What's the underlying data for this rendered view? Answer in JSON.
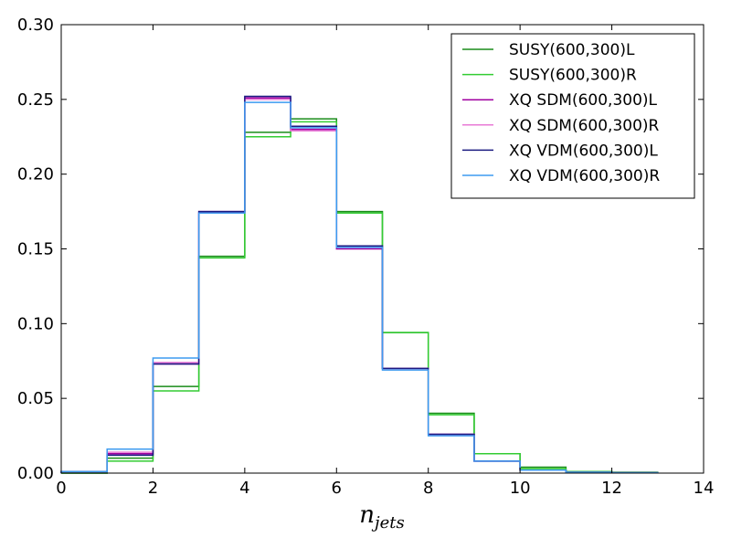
{
  "chart_data": {
    "type": "histogram-step",
    "xlabel_base": "n",
    "xlabel_sub": "jets",
    "ylabel": "",
    "xlim": [
      0,
      14
    ],
    "ylim": [
      0,
      0.3
    ],
    "xticks": [
      "0",
      "2",
      "4",
      "6",
      "8",
      "10",
      "12",
      "14"
    ],
    "yticks": [
      "0.00",
      "0.05",
      "0.10",
      "0.15",
      "0.20",
      "0.25",
      "0.30"
    ],
    "bin_edges": [
      0,
      1,
      2,
      3,
      4,
      5,
      6,
      7,
      8,
      9,
      10,
      11,
      12,
      13
    ],
    "legend_position": "top-right",
    "series": [
      {
        "name": "SUSY(600,300)L",
        "color": "#1a8c1a",
        "values": [
          0.0,
          0.01,
          0.058,
          0.145,
          0.228,
          0.237,
          0.175,
          0.094,
          0.04,
          0.013,
          0.004,
          0.001,
          0.0005
        ]
      },
      {
        "name": "SUSY(600,300)R",
        "color": "#33cc33",
        "values": [
          0.0,
          0.008,
          0.055,
          0.144,
          0.225,
          0.235,
          0.174,
          0.094,
          0.039,
          0.013,
          0.003,
          0.001,
          0.0005
        ]
      },
      {
        "name": "XQ SDM(600,300)L",
        "color": "#a000a0",
        "values": [
          0.001,
          0.013,
          0.073,
          0.175,
          0.251,
          0.23,
          0.15,
          0.07,
          0.026,
          0.008,
          0.002,
          0.0005,
          0.0002
        ]
      },
      {
        "name": "XQ SDM(600,300)R",
        "color": "#e87ad6",
        "values": [
          0.001,
          0.014,
          0.074,
          0.174,
          0.25,
          0.229,
          0.151,
          0.07,
          0.026,
          0.008,
          0.002,
          0.0005,
          0.0002
        ]
      },
      {
        "name": "XQ VDM(600,300)L",
        "color": "#1a1a80",
        "values": [
          0.001,
          0.012,
          0.073,
          0.175,
          0.252,
          0.232,
          0.152,
          0.07,
          0.026,
          0.008,
          0.002,
          0.0005,
          0.0002
        ]
      },
      {
        "name": "XQ VDM(600,300)R",
        "color": "#3d9bf0",
        "values": [
          0.001,
          0.016,
          0.077,
          0.174,
          0.248,
          0.231,
          0.151,
          0.069,
          0.025,
          0.008,
          0.002,
          0.0005,
          0.0002
        ]
      }
    ]
  }
}
